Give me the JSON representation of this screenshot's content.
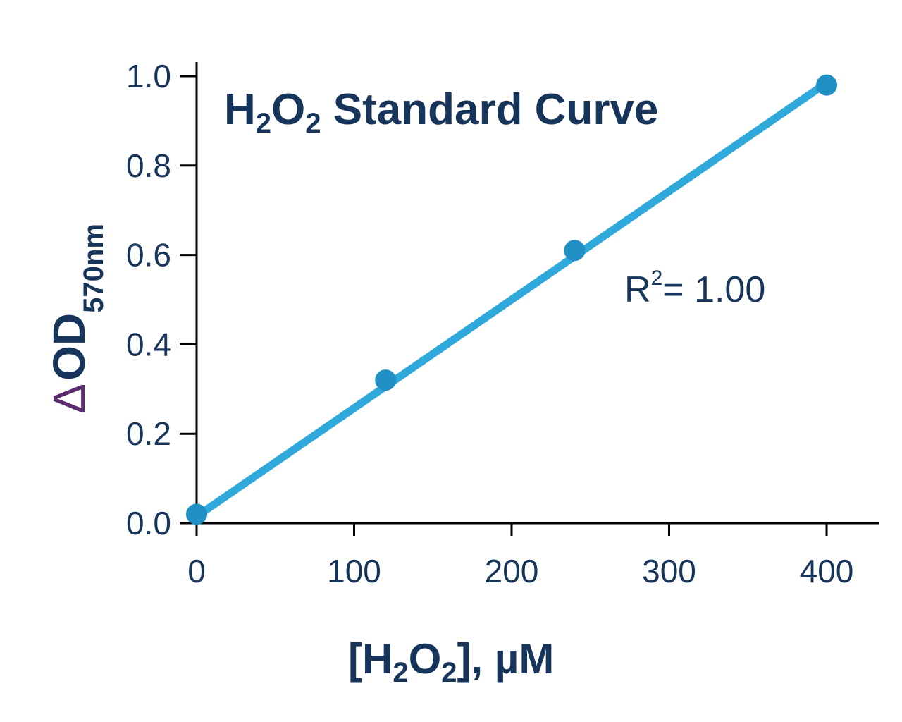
{
  "chart_data": {
    "type": "scatter",
    "title": {
      "main": "H",
      "sub1": "2",
      "mid": "O",
      "sub2": "2",
      "rest": " Standard Curve"
    },
    "xlabel": {
      "pre": "[H",
      "sub1": "2",
      "mid": "O",
      "sub2": "2",
      "post": "], µM"
    },
    "ylabel": {
      "delta": "∆",
      "main": "OD",
      "sub": "570nm"
    },
    "annotation": {
      "r": "R",
      "sup": "2",
      "rest": "= 1.00"
    },
    "xlim": [
      0,
      430
    ],
    "ylim": [
      0,
      1.0
    ],
    "x_ticks": [
      0,
      100,
      200,
      300,
      400
    ],
    "x_tick_labels": [
      "0",
      "100",
      "200",
      "300",
      "400"
    ],
    "y_ticks": [
      0,
      0.2,
      0.4,
      0.6,
      0.8,
      1.0
    ],
    "y_tick_labels": [
      "0.0",
      "0.2",
      "0.4",
      "0.6",
      "0.8",
      "1.0"
    ],
    "series": [
      {
        "points": [
          {
            "x": 0,
            "y": 0.02
          },
          {
            "x": 120,
            "y": 0.32
          },
          {
            "x": 240,
            "y": 0.61
          },
          {
            "x": 400,
            "y": 0.98
          }
        ]
      }
    ],
    "fit_line": {
      "x": [
        0,
        400
      ],
      "y": [
        0.015,
        0.985
      ]
    },
    "colors": {
      "axis": "#000000",
      "text": "#17345a",
      "line": "#2fa8dc",
      "marker": "#1f8fc4",
      "delta": "#5b2d6e"
    }
  }
}
